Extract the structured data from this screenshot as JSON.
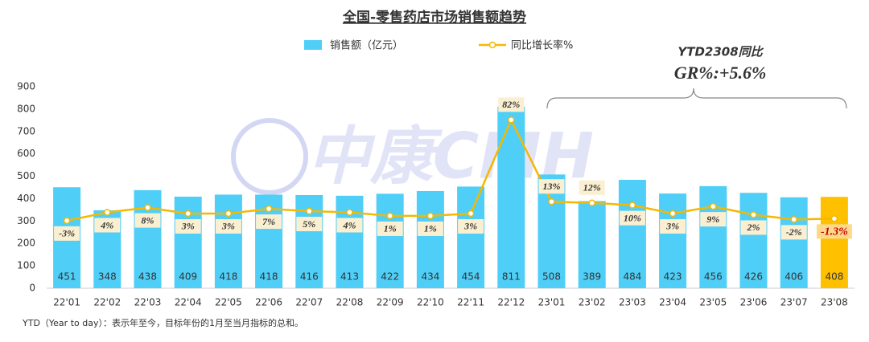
{
  "chart_data": {
    "type": "bar-line",
    "title": "全国-零售药店市场销售额趋势",
    "watermark": "中康CMH",
    "annotations": [
      "YTD2308同比",
      "GR%:+5.6%"
    ],
    "footnote": "YTD（Year to day）：表示年至今，目标年份的1月至当月指标的总和。",
    "categories": [
      "22'01",
      "22'02",
      "22'03",
      "22'04",
      "22'05",
      "22'06",
      "22'07",
      "22'08",
      "22'09",
      "22'10",
      "22'11",
      "22'12",
      "23'01",
      "23'02",
      "23'03",
      "23'04",
      "23'05",
      "23'06",
      "23'07",
      "23'08"
    ],
    "series": [
      {
        "name": "销售额（亿元）",
        "kind": "bar",
        "color": "#4fcff7",
        "colors": [
          "#4fcff7",
          "#4fcff7",
          "#4fcff7",
          "#4fcff7",
          "#4fcff7",
          "#4fcff7",
          "#4fcff7",
          "#4fcff7",
          "#4fcff7",
          "#4fcff7",
          "#4fcff7",
          "#4fcff7",
          "#4fcff7",
          "#4fcff7",
          "#4fcff7",
          "#4fcff7",
          "#4fcff7",
          "#4fcff7",
          "#4fcff7",
          "#ffc000"
        ],
        "values": [
          451,
          348,
          438,
          409,
          418,
          418,
          416,
          413,
          422,
          434,
          454,
          811,
          508,
          389,
          484,
          423,
          456,
          426,
          406,
          408
        ]
      },
      {
        "name": "同比增长率%",
        "kind": "line",
        "axis": "y2",
        "color": "#f5b800",
        "values": [
          -3,
          4,
          8,
          3,
          3,
          7,
          5,
          4,
          1,
          1,
          3,
          82,
          13,
          12,
          10,
          3,
          9,
          2,
          -2,
          -1.3
        ],
        "value_labels": [
          "-3%",
          "4%",
          "8%",
          "3%",
          "3%",
          "7%",
          "5%",
          "4%",
          "1%",
          "1%",
          "3%",
          "82%",
          "13%",
          "12%",
          "10%",
          "3%",
          "9%",
          "2%",
          "-2%",
          "-1.3%"
        ]
      }
    ],
    "ylim": [
      0,
      900
    ],
    "yticks": [
      0,
      100,
      200,
      300,
      400,
      500,
      600,
      700,
      800,
      900
    ],
    "y2lim": [
      -60,
      110
    ],
    "grid": false,
    "legend": "top"
  }
}
